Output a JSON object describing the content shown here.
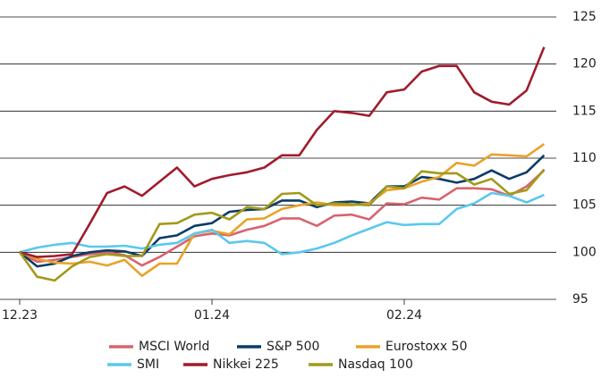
{
  "chart_data": {
    "type": "line",
    "categories": [
      "12.23",
      null,
      null,
      null,
      null,
      null,
      null,
      null,
      null,
      null,
      null,
      "01.24",
      null,
      null,
      null,
      null,
      null,
      null,
      null,
      null,
      null,
      null,
      "02.24",
      null,
      null,
      null,
      null,
      null,
      null,
      null,
      null
    ],
    "ylim": [
      95,
      125
    ],
    "yticks": [
      95,
      100,
      105,
      110,
      115,
      120,
      125
    ],
    "grid": true,
    "series": [
      {
        "name": "MSCI World",
        "color": "#d9636f",
        "values": [
          100,
          99,
          99.2,
          99.5,
          99.8,
          100,
          99.7,
          98.6,
          99.5,
          100.6,
          101.7,
          102,
          101.8,
          102.4,
          102.8,
          103.6,
          103.6,
          102.8,
          103.9,
          104,
          103.5,
          105.2,
          105.1,
          105.8,
          105.6,
          106.8,
          106.8,
          106.7,
          106,
          107,
          108.7
        ]
      },
      {
        "name": "S&P 500",
        "color": "#0b3c66",
        "values": [
          100,
          98.5,
          98.8,
          99.6,
          100,
          100.2,
          100.1,
          99.6,
          101.5,
          101.8,
          102.8,
          103.1,
          104.3,
          104.5,
          104.6,
          105.5,
          105.5,
          104.8,
          105.3,
          105.4,
          105.2,
          107,
          107,
          108,
          107.8,
          107.4,
          107.8,
          108.7,
          107.8,
          108.5,
          110.3
        ]
      },
      {
        "name": "Eurostoxx 50",
        "color": "#e8a32a",
        "values": [
          100,
          99.3,
          98.9,
          98.8,
          99,
          98.6,
          99.2,
          97.5,
          98.8,
          98.8,
          102,
          102.3,
          101.9,
          103.5,
          103.6,
          104.6,
          105,
          105.3,
          105,
          105,
          105.2,
          106.6,
          106.8,
          107.5,
          108,
          109.5,
          109.2,
          110.4,
          110.3,
          110.2,
          111.5
        ]
      },
      {
        "name": "SMI",
        "color": "#5bc8ee",
        "values": [
          100,
          100.5,
          100.8,
          101,
          100.6,
          100.6,
          100.7,
          100.4,
          100.8,
          101,
          102,
          102.4,
          101,
          101.2,
          101,
          99.8,
          100,
          100.4,
          101,
          101.8,
          102.5,
          103.2,
          102.9,
          103,
          103,
          104.6,
          105.2,
          106.3,
          106,
          105.3,
          106.1
        ]
      },
      {
        "name": "Nikkei 225",
        "color": "#a01c2c",
        "values": [
          100,
          99.5,
          99.6,
          99.8,
          103,
          106.3,
          107,
          106,
          107.5,
          109,
          107,
          107.8,
          108.2,
          108.5,
          109,
          110.3,
          110.3,
          113,
          115,
          114.8,
          114.5,
          117,
          117.3,
          119.2,
          119.8,
          119.8,
          117,
          116,
          115.7,
          117.2,
          121.8
        ]
      },
      {
        "name": "Nasdaq 100",
        "color": "#a39a1a",
        "values": [
          100,
          97.4,
          97,
          98.5,
          99.5,
          99.8,
          99.6,
          99.6,
          103,
          103.1,
          104,
          104.2,
          103.5,
          104.8,
          104.6,
          106.2,
          106.3,
          105,
          105.2,
          105.1,
          105,
          107,
          106.8,
          108.6,
          108.4,
          108.4,
          107.2,
          107.8,
          106.2,
          106.6,
          108.8
        ]
      }
    ]
  }
}
